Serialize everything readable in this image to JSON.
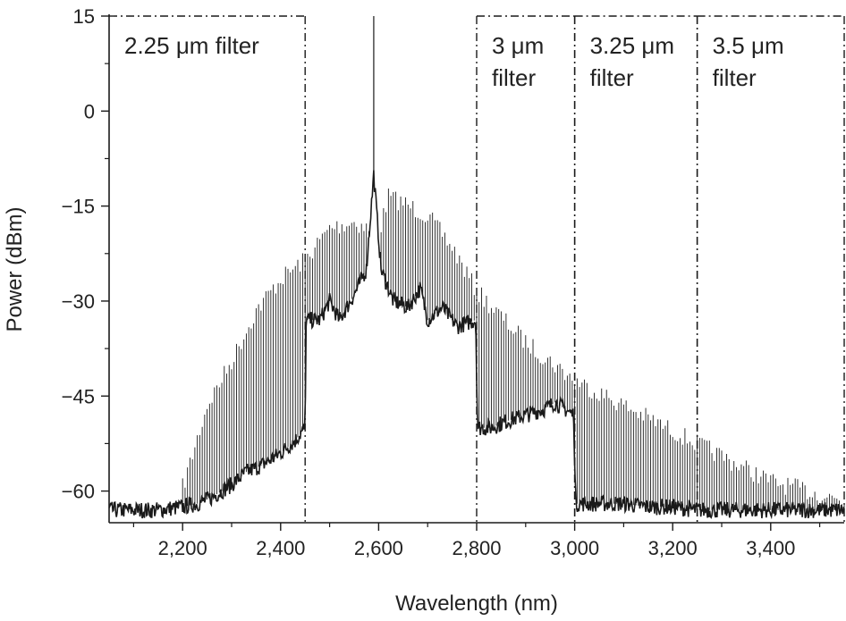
{
  "chart_data": {
    "type": "line",
    "title": "",
    "xlabel": "Wavelength (nm)",
    "ylabel": "Power (dBm)",
    "xlim": [
      2050,
      3550
    ],
    "ylim": [
      -65,
      15
    ],
    "x_ticks": [
      2200,
      2400,
      2600,
      2800,
      3000,
      3200,
      3400
    ],
    "x_tick_labels": [
      "2,200",
      "2,400",
      "2,600",
      "2,800",
      "3,000",
      "3,200",
      "3,400"
    ],
    "y_ticks": [
      15,
      0,
      -15,
      -30,
      -45,
      -60
    ],
    "y_tick_labels": [
      "15",
      "0",
      "−15",
      "−30",
      "−45",
      "−60"
    ],
    "grid": false,
    "legend": "none",
    "line_color": "#1a1a1a",
    "filters": [
      {
        "label_lines": [
          "2.25 μm filter"
        ],
        "x_start": 2050,
        "x_end": 2450,
        "top": 15
      },
      {
        "label_lines": [
          "3 μm",
          "filter"
        ],
        "x_start": 2800,
        "x_end": 3000,
        "top": 15
      },
      {
        "label_lines": [
          "3.25 μm",
          "filter"
        ],
        "x_start": 3000,
        "x_end": 3250,
        "top": 15
      },
      {
        "label_lines": [
          "3.5 μm",
          "filter"
        ],
        "x_start": 3250,
        "x_end": 3550,
        "top": 15
      }
    ],
    "series": [
      {
        "points": [
          [
            2050,
            -63
          ],
          [
            2100,
            -63
          ],
          [
            2150,
            -63
          ],
          [
            2200,
            -62.5
          ],
          [
            2230,
            -62
          ],
          [
            2260,
            -61
          ],
          [
            2300,
            -59
          ],
          [
            2330,
            -57
          ],
          [
            2360,
            -56
          ],
          [
            2400,
            -54
          ],
          [
            2430,
            -52
          ],
          [
            2450,
            -50
          ],
          [
            2452,
            -33
          ],
          [
            2480,
            -33
          ],
          [
            2500,
            -30
          ],
          [
            2520,
            -33
          ],
          [
            2550,
            -29
          ],
          [
            2575,
            -25
          ],
          [
            2590,
            -10
          ],
          [
            2605,
            -25
          ],
          [
            2630,
            -30
          ],
          [
            2660,
            -31
          ],
          [
            2685,
            -28
          ],
          [
            2700,
            -33
          ],
          [
            2730,
            -31
          ],
          [
            2760,
            -34
          ],
          [
            2798,
            -33
          ],
          [
            2802,
            -50
          ],
          [
            2830,
            -50
          ],
          [
            2860,
            -49
          ],
          [
            2900,
            -48
          ],
          [
            2940,
            -47
          ],
          [
            2960,
            -46
          ],
          [
            2998,
            -48
          ],
          [
            3002,
            -62
          ],
          [
            3050,
            -62
          ],
          [
            3100,
            -62
          ],
          [
            3150,
            -62.5
          ],
          [
            3200,
            -62.5
          ],
          [
            3250,
            -63
          ],
          [
            3300,
            -63
          ],
          [
            3350,
            -63
          ],
          [
            3400,
            -63
          ],
          [
            3450,
            -63
          ],
          [
            3500,
            -63
          ],
          [
            3550,
            -63
          ]
        ],
        "envelope": [
          [
            2200,
            -58
          ],
          [
            2250,
            -45
          ],
          [
            2300,
            -38
          ],
          [
            2350,
            -30
          ],
          [
            2400,
            -25
          ],
          [
            2450,
            -22
          ],
          [
            2500,
            -17
          ],
          [
            2550,
            -16
          ],
          [
            2600,
            -18
          ],
          [
            2620,
            -12
          ],
          [
            2650,
            -13
          ],
          [
            2700,
            -15
          ],
          [
            2750,
            -20
          ],
          [
            2800,
            -27
          ],
          [
            2850,
            -31
          ],
          [
            2900,
            -35
          ],
          [
            2950,
            -38
          ],
          [
            3000,
            -41
          ],
          [
            3050,
            -43
          ],
          [
            3100,
            -45
          ],
          [
            3150,
            -47
          ],
          [
            3200,
            -49
          ],
          [
            3250,
            -51
          ],
          [
            3300,
            -53
          ],
          [
            3350,
            -55
          ],
          [
            3400,
            -57
          ],
          [
            3450,
            -58
          ],
          [
            3500,
            -59
          ],
          [
            3550,
            -60
          ]
        ],
        "comb_spacing_nm": 5,
        "pump_line": {
          "x": 2590,
          "y": 15
        }
      }
    ]
  }
}
